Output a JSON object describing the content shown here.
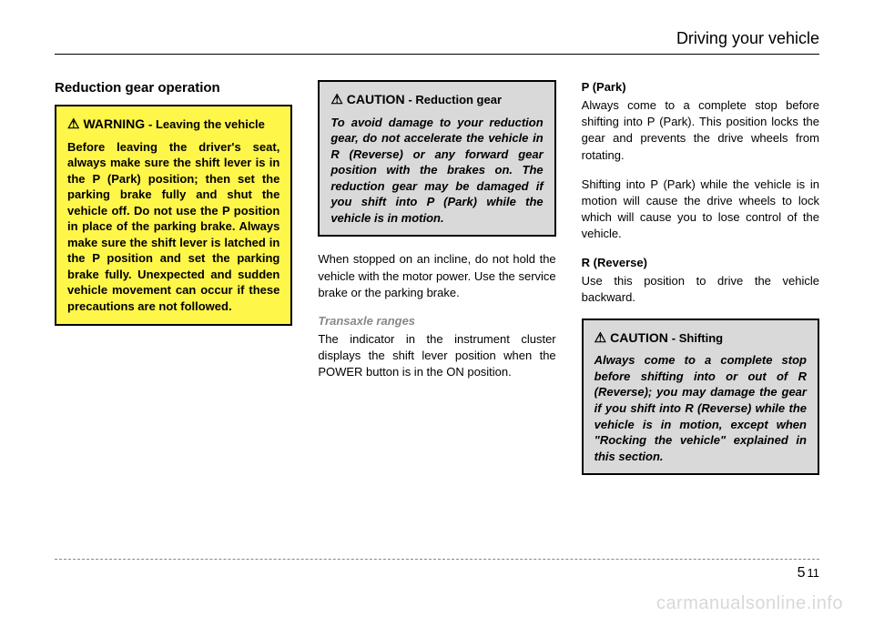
{
  "header": {
    "title": "Driving your vehicle"
  },
  "col1": {
    "section_title": "Reduction gear operation",
    "warning": {
      "label": "WARNING",
      "sub": "- Leaving the vehicle",
      "body": "Before leaving the driver's seat, always make sure the shift lever is in the P (Park) position; then set the parking brake fully and shut the vehicle off. Do not use the P position in place of the parking brake. Always make sure the shift lever is latched in the P position and set the parking brake fully. Unexpected and sudden vehicle movement can occur if these precautions are not followed."
    }
  },
  "col2": {
    "caution": {
      "label": "CAUTION",
      "sub": "- Reduction gear",
      "body": "To avoid damage to your reduction gear, do not accelerate the vehicle in R (Reverse) or any forward gear position with the brakes on. The reduction gear may be damaged if you shift into P (Park) while the vehicle is in motion."
    },
    "p1": "When stopped on an incline, do not hold the vehicle with the motor power. Use the service brake or the parking brake.",
    "subhead": "Transaxle ranges",
    "p2": "The indicator in the instrument cluster displays the shift lever position when the POWER button is in the ON position."
  },
  "col3": {
    "park_head": "P (Park)",
    "park_p1": "Always come to a complete stop before shifting into P (Park). This position locks the gear and prevents the drive wheels from rotating.",
    "park_p2": "Shifting into P (Park) while the vehicle is in motion will cause the drive wheels to lock which will cause you to lose control of the vehicle.",
    "rev_head": "R (Reverse)",
    "rev_p": "Use this position to drive the vehicle backward.",
    "caution": {
      "label": "CAUTION",
      "sub": "- Shifting",
      "body": "Always come to a complete stop before shifting into or out of R (Reverse); you may damage the gear if you shift into R (Reverse) while the vehicle is in motion, except when \"Rocking the vehicle\" explained in this section."
    }
  },
  "footer": {
    "chapter": "5",
    "page": "11"
  },
  "watermark": "carmanualsonline.info",
  "colors": {
    "warning_bg": "#fff64a",
    "caution_bg": "#d9d9d9",
    "watermark_color": "#d8d8d8"
  }
}
